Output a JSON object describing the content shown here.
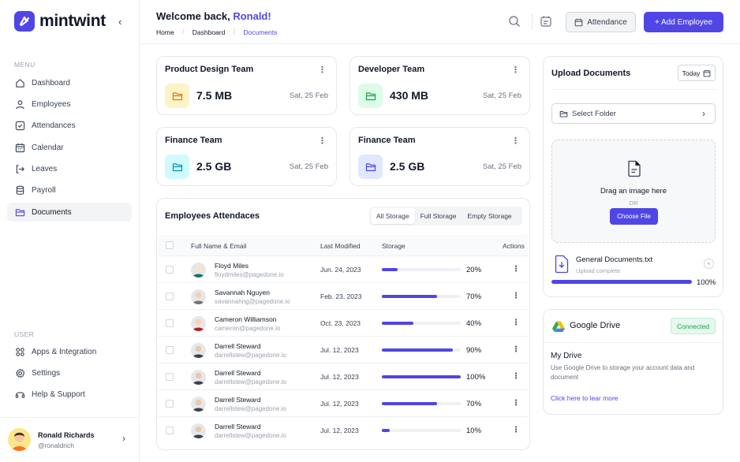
{
  "app": {
    "name": "mintwint",
    "collapse_icon": "chevron-left-icon"
  },
  "sidebar": {
    "menu_label": "MENU",
    "items": [
      {
        "label": "Dashboard",
        "icon": "home-icon"
      },
      {
        "label": "Employees",
        "icon": "user-icon"
      },
      {
        "label": "Attendances",
        "icon": "check-square-icon"
      },
      {
        "label": "Calendar",
        "icon": "calendar-icon"
      },
      {
        "label": "Leaves",
        "icon": "logout-icon"
      },
      {
        "label": "Payroll",
        "icon": "database-icon"
      },
      {
        "label": "Documents",
        "icon": "folder-icon",
        "active": true
      }
    ],
    "user_label": "USER",
    "user_items": [
      {
        "label": "Apps & Integration",
        "icon": "grid-icon"
      },
      {
        "label": "Settings",
        "icon": "gear-icon"
      },
      {
        "label": "Help & Support",
        "icon": "help-icon"
      }
    ],
    "profile": {
      "name": "Ronald Richards",
      "handle": "@ronaldrich"
    }
  },
  "header": {
    "welcome_prefix": "Welcome back, ",
    "welcome_name": "Ronald!",
    "breadcrumb": [
      "Home",
      "Dashboard",
      "Documents"
    ],
    "attendance_label": "Attendance",
    "add_employee_label": "+ Add Employee"
  },
  "folders": [
    {
      "title": "Product Design Team",
      "size": "7.5 MB",
      "date": "Sat, 25 Feb",
      "color": "#fef3c7",
      "icon_color": "#d97706"
    },
    {
      "title": "Developer Team",
      "size": "430 MB",
      "date": "Sat, 25 Feb",
      "color": "#dcfce7",
      "icon_color": "#16a34a"
    },
    {
      "title": "Finance Team",
      "size": "2.5 GB",
      "date": "Sat, 25 Feb",
      "color": "#cffafe",
      "icon_color": "#0891b2"
    },
    {
      "title": "Finance Team",
      "size": "2.5 GB",
      "date": "Sat, 25 Feb",
      "color": "#e0e7ff",
      "icon_color": "#4f46e5"
    }
  ],
  "attendance": {
    "title": "Employees Attendaces",
    "filters": [
      "All Storage",
      "Full Storage",
      "Empty Storage"
    ],
    "active_filter": "All Storage",
    "columns": [
      "Full Name & Email",
      "Last Modified",
      "Storage",
      "Actions"
    ],
    "rows": [
      {
        "name": "Floyd Miles",
        "email": "floydmiles@pagedone.io",
        "date": "Jun. 24, 2023",
        "storage": 20,
        "storage_label": "20%"
      },
      {
        "name": "Savannah Nguyen",
        "email": "savannahng@pagedone.io",
        "date": "Feb. 23, 2023",
        "storage": 70,
        "storage_label": "70%"
      },
      {
        "name": "Cameron Williamson",
        "email": "cameron@pagedone.io",
        "date": "Oct. 23, 2023",
        "storage": 40,
        "storage_label": "40%"
      },
      {
        "name": "Darrell Steward",
        "email": "darrellstew@pagedone.io",
        "date": "Jul. 12, 2023",
        "storage": 90,
        "storage_label": "90%"
      },
      {
        "name": "Darrell Steward",
        "email": "darrellstew@pagedone.io",
        "date": "Jul. 12, 2023",
        "storage": 100,
        "storage_label": "100%"
      },
      {
        "name": "Darrell Steward",
        "email": "darrellstew@pagedone.io",
        "date": "Jul. 12, 2023",
        "storage": 70,
        "storage_label": "70%"
      },
      {
        "name": "Darrell Steward",
        "email": "darrellstew@pagedone.io",
        "date": "Jul. 12, 2023",
        "storage": 10,
        "storage_label": "10%"
      }
    ]
  },
  "upload": {
    "title": "Upload Documents",
    "date_filter": "Today",
    "select_folder": "Select Folder",
    "drag_text": "Drag an image here",
    "or_text": "OR",
    "choose_file": "Choose File",
    "file_name": "General Documents.txt",
    "file_status": "Upload complete",
    "progress": 100,
    "progress_label": "100%"
  },
  "drive": {
    "title": "Google Drive",
    "status": "Connected",
    "section_title": "My Drive",
    "description": "Use Google Drive to storage your account data and document",
    "link": "Click here to lear more"
  },
  "colors": {
    "accent": "#5046e5",
    "bar": "#4f46e5",
    "success": "#16a34a"
  }
}
